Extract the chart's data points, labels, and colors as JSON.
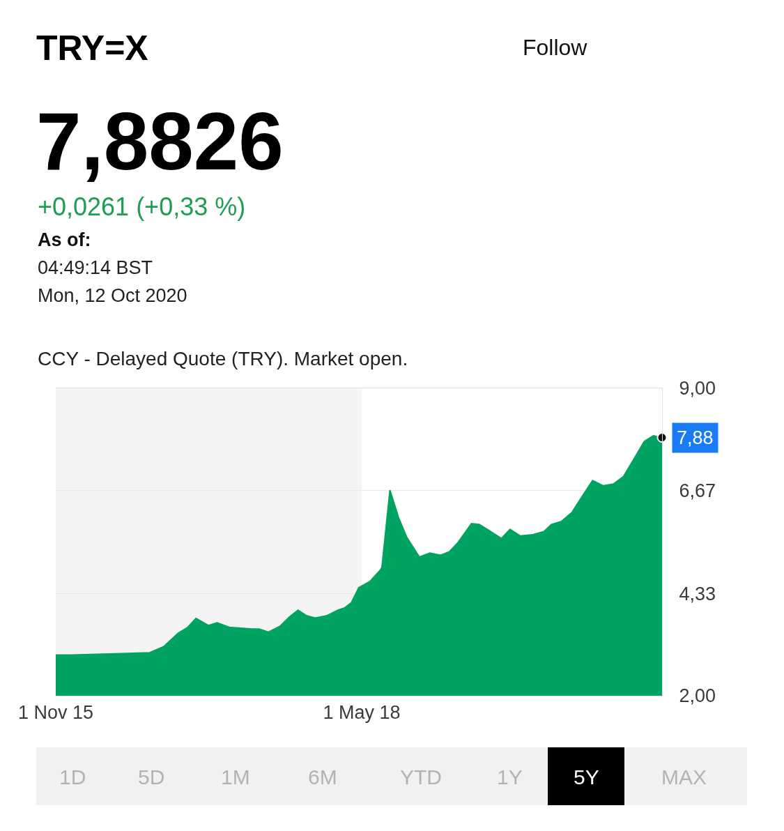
{
  "chart_data": {
    "type": "area",
    "title": "TRY=X",
    "subtitle": "7,8826",
    "annotations": [
      "+0,0261 (+0,33 %)",
      "As of:",
      "04:49:14 BST",
      "Mon, 12 Oct 2020",
      "CCY - Delayed Quote (TRY). Market open.",
      "Follow",
      "1D",
      "5D",
      "1M",
      "6M",
      "YTD",
      "1Y",
      "5Y",
      "MAX"
    ],
    "x": [
      "2015-11-01",
      "2015-12-19",
      "2016-06-19",
      "2016-08-07",
      "2016-09-18",
      "2016-10-30",
      "2016-11-27",
      "2016-12-23",
      "2017-01-29",
      "2017-02-24",
      "2017-04-01",
      "2017-06-08",
      "2017-06-29",
      "2017-07-27",
      "2017-08-30",
      "2017-09-27",
      "2017-10-23",
      "2017-11-18",
      "2017-12-13",
      "2018-01-16",
      "2018-02-19",
      "2018-03-11",
      "2018-03-31",
      "2018-04-22",
      "2018-05-25",
      "2018-06-24",
      "2018-06-30",
      "2018-07-24",
      "2018-08-19",
      "2018-09-12",
      "2018-10-20",
      "2018-11-20",
      "2018-12-22",
      "2019-01-17",
      "2019-02-12",
      "2019-03-24",
      "2019-04-16",
      "2019-05-16",
      "2019-06-21",
      "2019-07-17",
      "2019-08-16",
      "2019-09-24",
      "2019-10-26",
      "2019-11-17",
      "2019-12-17",
      "2020-01-18",
      "2020-02-17",
      "2020-03-19",
      "2020-04-20",
      "2020-05-20",
      "2020-06-19",
      "2020-07-21",
      "2020-08-20",
      "2020-09-16",
      "2020-10-12"
    ],
    "values": [
      2.93,
      2.93,
      2.97,
      2.98,
      3.12,
      3.42,
      3.55,
      3.76,
      3.6,
      3.66,
      3.56,
      3.52,
      3.52,
      3.45,
      3.58,
      3.79,
      3.95,
      3.82,
      3.77,
      3.82,
      3.95,
      4.0,
      4.12,
      4.46,
      4.6,
      4.85,
      4.92,
      6.68,
      6.05,
      5.61,
      5.16,
      5.25,
      5.2,
      5.28,
      5.49,
      5.92,
      5.9,
      5.76,
      5.58,
      5.79,
      5.64,
      5.67,
      5.74,
      5.9,
      5.97,
      6.18,
      6.54,
      6.9,
      6.78,
      6.82,
      6.99,
      7.4,
      7.79,
      7.92,
      7.88
    ],
    "value_labels": [
      null,
      null,
      null,
      null,
      null,
      null,
      null,
      null,
      null,
      null,
      null,
      null,
      null,
      null,
      null,
      null,
      null,
      null,
      null,
      null,
      null,
      null,
      null,
      null,
      null,
      null,
      null,
      null,
      null,
      null,
      null,
      null,
      null,
      null,
      null,
      null,
      null,
      null,
      null,
      null,
      null,
      null,
      null,
      null,
      null,
      null,
      null,
      null,
      null,
      null,
      null,
      null,
      null,
      null,
      "7,88"
    ],
    "color": "#00a35f",
    "xlim": [
      "2015-11-01",
      "2020-10-12"
    ],
    "xticks": [
      {
        "value": "2015-11-01",
        "label": "1 Nov 15"
      },
      {
        "value": "2018-05-01",
        "label": "1 May 18"
      }
    ],
    "ylim": [
      2,
      9
    ],
    "yticks": [
      {
        "value": 2,
        "label": "2,00"
      },
      {
        "value": 4.33,
        "label": "4,33"
      },
      {
        "value": 6.67,
        "label": "6,67"
      },
      {
        "value": 9,
        "label": "9,00"
      }
    ],
    "grid": "y",
    "bands": [
      {
        "axis": "x",
        "from": "2015-11-01",
        "to": "2018-05-01",
        "color": "#f4f4f4"
      }
    ]
  }
}
